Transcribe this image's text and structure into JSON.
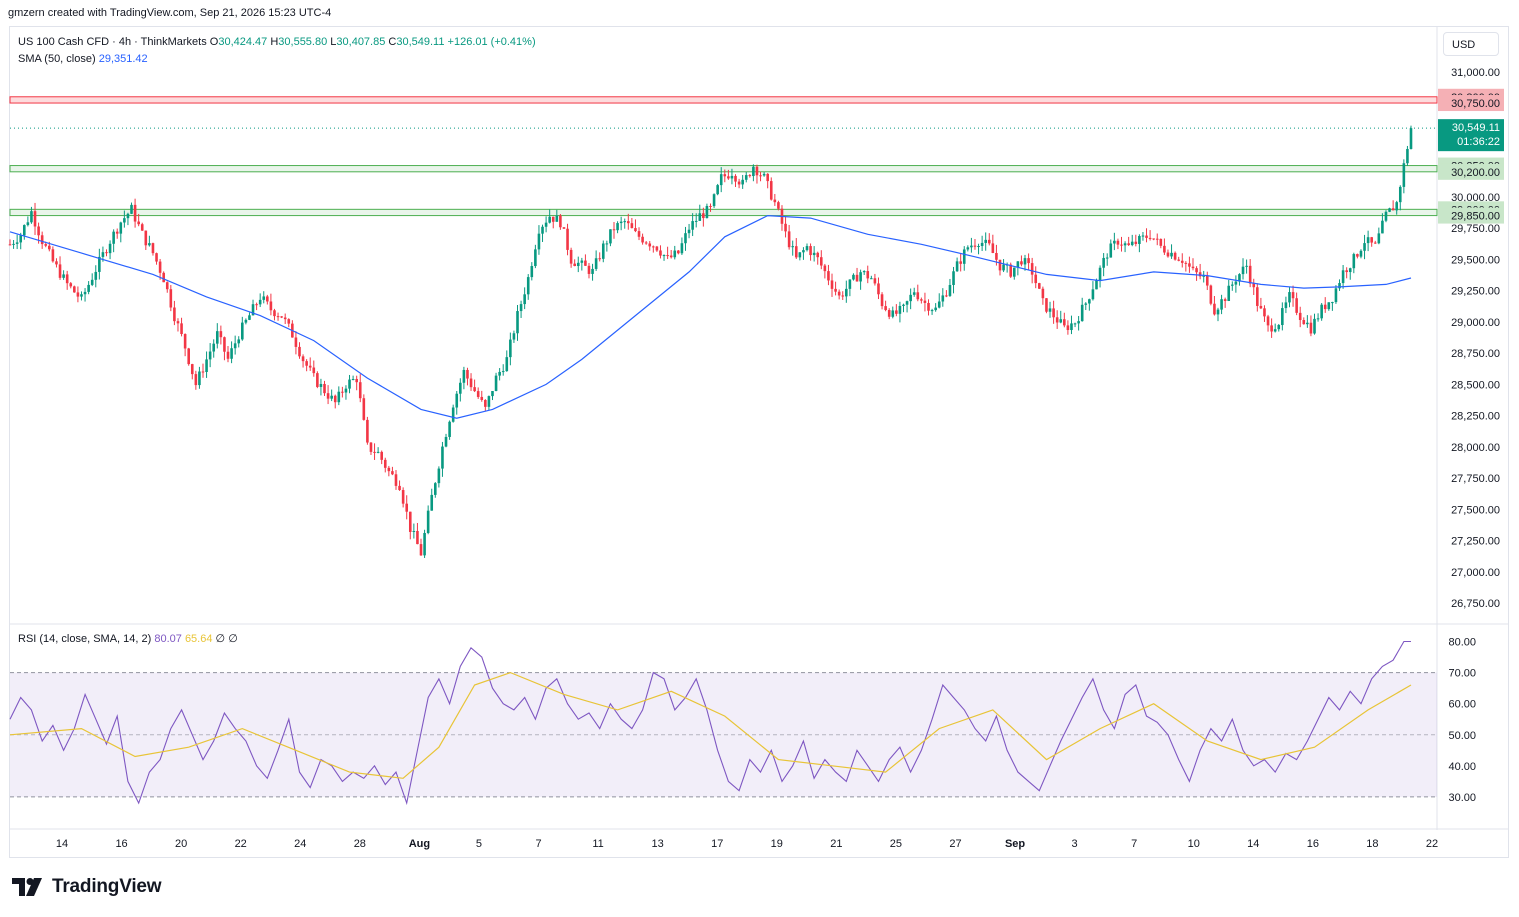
{
  "header": {
    "attribution": "gmzern created with TradingView.com, Sep 21, 2026 15:23 UTC-4"
  },
  "legend": {
    "symbol": "US 100 Cash CFD · 4h · ThinkMarkets",
    "open_label": "O",
    "open": "30,424.47",
    "high_label": "H",
    "high": "30,555.80",
    "low_label": "L",
    "low": "30,407.85",
    "close_label": "C",
    "close": "30,549.11",
    "change": "+126.01 (+0.41%)",
    "sma_label": "SMA (50, close)",
    "sma_value": "29,351.42"
  },
  "rsi_legend": {
    "label": "RSI (14, close, SMA, 14, 2)",
    "rsi_value": "80.07",
    "rsi_sma_value": "65.64",
    "extra1": "∅",
    "extra2": "∅"
  },
  "currency": "USD",
  "brand": {
    "name": "TradingView",
    "logo_icon": "tradingview-logo-icon"
  },
  "colors": {
    "up": "#089981",
    "down": "#f23645",
    "sma": "#2962ff",
    "rsi": "#7e57c2",
    "rsi_sma": "#e8c437",
    "resistance": "#f23645",
    "support": "#4caf50"
  },
  "chart_data": [
    {
      "type": "candlestick",
      "ylim": [
        26600,
        31350
      ],
      "price_ticks": [
        "31,000.00",
        "30,750.00",
        "30,000.00",
        "29,750.00",
        "29,500.00",
        "29,250.00",
        "29,000.00",
        "28,750.00",
        "28,500.00",
        "28,250.00",
        "28,000.00",
        "27,750.00",
        "27,500.00",
        "27,250.00",
        "27,000.00",
        "26,750.00"
      ],
      "x_ticks": [
        "14",
        "16",
        "20",
        "22",
        "24",
        "28",
        "Aug",
        "5",
        "7",
        "11",
        "13",
        "17",
        "19",
        "21",
        "25",
        "27",
        "Sep",
        "3",
        "7",
        "10",
        "14",
        "16",
        "18",
        "22"
      ],
      "resistance_zone": {
        "low": 30750,
        "high": 30800,
        "low_label": "30,750.00",
        "high_label": "30,800.00"
      },
      "support_zones": [
        {
          "low": 30200,
          "high": 30250,
          "low_label": "30,200.00",
          "high_label": "30,250.00"
        },
        {
          "low": 29850,
          "high": 29900,
          "low_label": "29,850.00",
          "high_label": "29,900.00"
        }
      ],
      "last_price": {
        "value": 30549.11,
        "label": "30,549.11",
        "countdown": "01:36:22"
      },
      "close_path": [
        [
          0,
          29620
        ],
        [
          3,
          29700
        ],
        [
          6,
          29880
        ],
        [
          9,
          29650
        ],
        [
          12,
          29480
        ],
        [
          16,
          29300
        ],
        [
          20,
          29180
        ],
        [
          24,
          29420
        ],
        [
          28,
          29650
        ],
        [
          31,
          29800
        ],
        [
          34,
          29900
        ],
        [
          37,
          29700
        ],
        [
          40,
          29550
        ],
        [
          43,
          29350
        ],
        [
          46,
          29050
        ],
        [
          49,
          28800
        ],
        [
          52,
          28500
        ],
        [
          55,
          28700
        ],
        [
          58,
          28900
        ],
        [
          61,
          28700
        ],
        [
          64,
          28900
        ],
        [
          67,
          29050
        ],
        [
          70,
          29200
        ],
        [
          73,
          29100
        ],
        [
          76,
          29050
        ],
        [
          79,
          28900
        ],
        [
          82,
          28700
        ],
        [
          85,
          28550
        ],
        [
          88,
          28450
        ],
        [
          91,
          28350
        ],
        [
          94,
          28500
        ],
        [
          97,
          28550
        ],
        [
          100,
          28000
        ],
        [
          103,
          27950
        ],
        [
          106,
          27800
        ],
        [
          109,
          27700
        ],
        [
          112,
          27350
        ],
        [
          115,
          27150
        ],
        [
          118,
          27600
        ],
        [
          121,
          28000
        ],
        [
          124,
          28350
        ],
        [
          127,
          28600
        ],
        [
          130,
          28450
        ],
        [
          133,
          28300
        ],
        [
          136,
          28550
        ],
        [
          139,
          28700
        ],
        [
          142,
          29050
        ],
        [
          145,
          29350
        ],
        [
          148,
          29750
        ],
        [
          151,
          29850
        ],
        [
          154,
          29800
        ],
        [
          157,
          29500
        ],
        [
          160,
          29450
        ],
        [
          163,
          29400
        ],
        [
          166,
          29600
        ],
        [
          169,
          29750
        ],
        [
          172,
          29800
        ],
        [
          175,
          29700
        ],
        [
          178,
          29650
        ],
        [
          181,
          29600
        ],
        [
          184,
          29500
        ],
        [
          187,
          29550
        ],
        [
          190,
          29750
        ],
        [
          193,
          29850
        ],
        [
          196,
          29900
        ],
        [
          199,
          30150
        ],
        [
          202,
          30200
        ],
        [
          205,
          30100
        ],
        [
          208,
          30250
        ],
        [
          211,
          30150
        ],
        [
          214,
          29950
        ],
        [
          217,
          29700
        ],
        [
          220,
          29500
        ],
        [
          223,
          29600
        ],
        [
          226,
          29500
        ],
        [
          229,
          29350
        ],
        [
          232,
          29200
        ],
        [
          235,
          29300
        ],
        [
          238,
          29400
        ],
        [
          241,
          29350
        ],
        [
          244,
          29150
        ],
        [
          247,
          29050
        ],
        [
          250,
          29100
        ],
        [
          253,
          29250
        ],
        [
          256,
          29150
        ],
        [
          259,
          29100
        ],
        [
          262,
          29250
        ],
        [
          265,
          29450
        ],
        [
          268,
          29600
        ],
        [
          271,
          29650
        ],
        [
          274,
          29600
        ],
        [
          277,
          29450
        ],
        [
          280,
          29400
        ],
        [
          283,
          29500
        ],
        [
          286,
          29400
        ],
        [
          289,
          29150
        ],
        [
          292,
          29050
        ],
        [
          295,
          28950
        ],
        [
          298,
          29000
        ],
        [
          301,
          29150
        ],
        [
          304,
          29350
        ],
        [
          307,
          29550
        ],
        [
          310,
          29650
        ],
        [
          313,
          29600
        ],
        [
          316,
          29650
        ],
        [
          319,
          29700
        ],
        [
          322,
          29600
        ],
        [
          325,
          29550
        ],
        [
          328,
          29500
        ],
        [
          331,
          29400
        ],
        [
          334,
          29350
        ],
        [
          337,
          29100
        ],
        [
          340,
          29200
        ],
        [
          343,
          29350
        ],
        [
          346,
          29450
        ],
        [
          349,
          29150
        ],
        [
          352,
          28950
        ],
        [
          355,
          29000
        ],
        [
          358,
          29200
        ],
        [
          361,
          29050
        ],
        [
          364,
          28950
        ],
        [
          367,
          29100
        ],
        [
          370,
          29200
        ],
        [
          373,
          29400
        ],
        [
          376,
          29500
        ],
        [
          379,
          29650
        ],
        [
          382,
          29600
        ],
        [
          385,
          29850
        ],
        [
          388,
          29950
        ],
        [
          390,
          30250
        ],
        [
          392,
          30550
        ]
      ],
      "sma_path": [
        [
          0,
          29720
        ],
        [
          20,
          29550
        ],
        [
          40,
          29380
        ],
        [
          55,
          29200
        ],
        [
          70,
          29050
        ],
        [
          85,
          28850
        ],
        [
          100,
          28550
        ],
        [
          115,
          28300
        ],
        [
          125,
          28230
        ],
        [
          135,
          28300
        ],
        [
          150,
          28500
        ],
        [
          160,
          28700
        ],
        [
          175,
          29050
        ],
        [
          190,
          29400
        ],
        [
          200,
          29680
        ],
        [
          212,
          29850
        ],
        [
          224,
          29830
        ],
        [
          240,
          29700
        ],
        [
          255,
          29620
        ],
        [
          270,
          29520
        ],
        [
          290,
          29380
        ],
        [
          305,
          29330
        ],
        [
          320,
          29400
        ],
        [
          335,
          29370
        ],
        [
          350,
          29300
        ],
        [
          362,
          29270
        ],
        [
          372,
          29280
        ],
        [
          385,
          29300
        ],
        [
          392,
          29351
        ]
      ],
      "x_range": [
        0,
        392
      ]
    },
    {
      "type": "line",
      "title": "RSI",
      "ylim": [
        20,
        85
      ],
      "y_ticks": [
        "80.00",
        "70.00",
        "60.00",
        "50.00",
        "40.00",
        "30.00"
      ],
      "bands": {
        "upper": 70,
        "middle": 50,
        "lower": 30
      },
      "rsi_path": [
        [
          0,
          55
        ],
        [
          3,
          62
        ],
        [
          6,
          58
        ],
        [
          9,
          48
        ],
        [
          12,
          53
        ],
        [
          15,
          45
        ],
        [
          18,
          52
        ],
        [
          21,
          63
        ],
        [
          24,
          55
        ],
        [
          27,
          47
        ],
        [
          30,
          56
        ],
        [
          33,
          35
        ],
        [
          36,
          28
        ],
        [
          39,
          38
        ],
        [
          42,
          42
        ],
        [
          45,
          52
        ],
        [
          48,
          58
        ],
        [
          51,
          50
        ],
        [
          54,
          42
        ],
        [
          57,
          48
        ],
        [
          60,
          57
        ],
        [
          63,
          52
        ],
        [
          66,
          48
        ],
        [
          69,
          40
        ],
        [
          72,
          36
        ],
        [
          75,
          45
        ],
        [
          78,
          55
        ],
        [
          81,
          38
        ],
        [
          84,
          33
        ],
        [
          87,
          42
        ],
        [
          90,
          40
        ],
        [
          93,
          35
        ],
        [
          96,
          38
        ],
        [
          99,
          36
        ],
        [
          102,
          40
        ],
        [
          105,
          34
        ],
        [
          108,
          38
        ],
        [
          111,
          28
        ],
        [
          114,
          45
        ],
        [
          117,
          62
        ],
        [
          120,
          68
        ],
        [
          123,
          60
        ],
        [
          126,
          72
        ],
        [
          129,
          78
        ],
        [
          132,
          75
        ],
        [
          135,
          65
        ],
        [
          138,
          60
        ],
        [
          141,
          58
        ],
        [
          144,
          62
        ],
        [
          147,
          55
        ],
        [
          150,
          65
        ],
        [
          153,
          68
        ],
        [
          156,
          60
        ],
        [
          159,
          55
        ],
        [
          162,
          57
        ],
        [
          165,
          52
        ],
        [
          168,
          60
        ],
        [
          171,
          55
        ],
        [
          174,
          52
        ],
        [
          177,
          58
        ],
        [
          180,
          70
        ],
        [
          183,
          68
        ],
        [
          186,
          58
        ],
        [
          189,
          62
        ],
        [
          192,
          68
        ],
        [
          195,
          58
        ],
        [
          198,
          45
        ],
        [
          201,
          35
        ],
        [
          204,
          32
        ],
        [
          207,
          42
        ],
        [
          210,
          38
        ],
        [
          213,
          45
        ],
        [
          216,
          35
        ],
        [
          219,
          40
        ],
        [
          222,
          48
        ],
        [
          225,
          36
        ],
        [
          228,
          42
        ],
        [
          231,
          38
        ],
        [
          234,
          35
        ],
        [
          237,
          45
        ],
        [
          240,
          40
        ],
        [
          243,
          35
        ],
        [
          246,
          42
        ],
        [
          249,
          46
        ],
        [
          252,
          38
        ],
        [
          255,
          45
        ],
        [
          258,
          55
        ],
        [
          261,
          66
        ],
        [
          264,
          62
        ],
        [
          267,
          58
        ],
        [
          270,
          52
        ],
        [
          273,
          48
        ],
        [
          276,
          56
        ],
        [
          279,
          45
        ],
        [
          282,
          38
        ],
        [
          285,
          35
        ],
        [
          288,
          32
        ],
        [
          291,
          40
        ],
        [
          294,
          48
        ],
        [
          297,
          55
        ],
        [
          300,
          62
        ],
        [
          303,
          68
        ],
        [
          306,
          58
        ],
        [
          309,
          52
        ],
        [
          312,
          63
        ],
        [
          315,
          66
        ],
        [
          318,
          56
        ],
        [
          321,
          54
        ],
        [
          324,
          50
        ],
        [
          327,
          42
        ],
        [
          330,
          35
        ],
        [
          333,
          45
        ],
        [
          336,
          52
        ],
        [
          339,
          48
        ],
        [
          342,
          55
        ],
        [
          345,
          45
        ],
        [
          348,
          40
        ],
        [
          351,
          42
        ],
        [
          354,
          38
        ],
        [
          357,
          44
        ],
        [
          360,
          42
        ],
        [
          363,
          48
        ],
        [
          366,
          55
        ],
        [
          369,
          62
        ],
        [
          372,
          58
        ],
        [
          375,
          64
        ],
        [
          378,
          60
        ],
        [
          381,
          68
        ],
        [
          384,
          72
        ],
        [
          387,
          74
        ],
        [
          390,
          80
        ],
        [
          392,
          80
        ]
      ],
      "rsi_sma_path": [
        [
          0,
          50
        ],
        [
          20,
          52
        ],
        [
          35,
          43
        ],
        [
          50,
          46
        ],
        [
          65,
          52
        ],
        [
          80,
          45
        ],
        [
          95,
          38
        ],
        [
          110,
          36
        ],
        [
          120,
          46
        ],
        [
          130,
          66
        ],
        [
          140,
          70
        ],
        [
          155,
          63
        ],
        [
          170,
          58
        ],
        [
          185,
          64
        ],
        [
          200,
          56
        ],
        [
          215,
          42
        ],
        [
          230,
          40
        ],
        [
          245,
          38
        ],
        [
          260,
          52
        ],
        [
          275,
          58
        ],
        [
          290,
          42
        ],
        [
          305,
          52
        ],
        [
          320,
          60
        ],
        [
          335,
          48
        ],
        [
          350,
          42
        ],
        [
          365,
          46
        ],
        [
          380,
          58
        ],
        [
          392,
          66
        ]
      ],
      "x_range": [
        0,
        392
      ]
    }
  ]
}
